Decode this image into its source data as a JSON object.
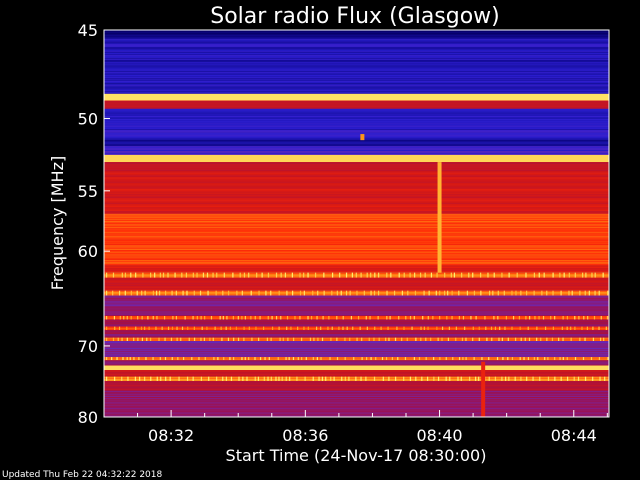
{
  "chart_data": {
    "type": "heatmap",
    "title": "Solar radio Flux (Glasgow)",
    "ylabel": "Frequency [MHz]",
    "xlabel": "Start Time (24-Nov-17 08:30:00)",
    "x_ticks": [
      "08:32",
      "08:36",
      "08:40",
      "08:44"
    ],
    "x_tick_minutes": [
      2,
      6,
      10,
      14
    ],
    "xlim_minutes": [
      0,
      15.05
    ],
    "y_ticks": [
      "45",
      "50",
      "55",
      "60",
      "70",
      "80"
    ],
    "y_tick_values": [
      45,
      50,
      55,
      60,
      70,
      80
    ],
    "ylim": [
      45,
      80
    ],
    "y_scale": "reciprocal",
    "footer": "Updated Thu Feb 22 04:32:22 2018",
    "colormap": [
      "#06006a",
      "#2a1ed0",
      "#6a2ab8",
      "#a0104a",
      "#d01818",
      "#ff2a08",
      "#ff9a18",
      "#ffee70"
    ],
    "bands": [
      {
        "from": 45.0,
        "to": 45.4,
        "level": 0.02
      },
      {
        "from": 45.4,
        "to": 48.5,
        "level": 0.12
      },
      {
        "from": 48.5,
        "to": 48.9,
        "level": 0.98
      },
      {
        "from": 48.9,
        "to": 49.4,
        "level": 0.55
      },
      {
        "from": 49.4,
        "to": 51.3,
        "level": 0.14
      },
      {
        "from": 51.3,
        "to": 51.8,
        "level": 0.06
      },
      {
        "from": 51.8,
        "to": 52.4,
        "level": 0.2
      },
      {
        "from": 52.4,
        "to": 52.9,
        "level": 0.96
      },
      {
        "from": 52.9,
        "to": 53.6,
        "level": 0.52
      },
      {
        "from": 53.6,
        "to": 56.8,
        "level": 0.58
      },
      {
        "from": 56.8,
        "to": 61.3,
        "level": 0.74
      },
      {
        "from": 61.3,
        "to": 62.0,
        "level": 0.6
      },
      {
        "from": 62.0,
        "to": 62.5,
        "level": 0.82
      },
      {
        "from": 62.5,
        "to": 63.8,
        "level": 0.55
      },
      {
        "from": 63.8,
        "to": 64.3,
        "level": 0.8
      },
      {
        "from": 64.3,
        "to": 66.5,
        "level": 0.36
      },
      {
        "from": 66.5,
        "to": 66.9,
        "level": 0.78
      },
      {
        "from": 66.9,
        "to": 67.7,
        "level": 0.42
      },
      {
        "from": 67.7,
        "to": 68.1,
        "level": 0.74
      },
      {
        "from": 68.1,
        "to": 69.0,
        "level": 0.4
      },
      {
        "from": 69.0,
        "to": 69.4,
        "level": 0.8
      },
      {
        "from": 69.4,
        "to": 71.4,
        "level": 0.34
      },
      {
        "from": 71.4,
        "to": 71.8,
        "level": 0.82
      },
      {
        "from": 71.8,
        "to": 72.5,
        "level": 0.4
      },
      {
        "from": 72.5,
        "to": 73.1,
        "level": 0.97
      },
      {
        "from": 73.1,
        "to": 74.0,
        "level": 0.55
      },
      {
        "from": 74.0,
        "to": 74.6,
        "level": 0.85
      },
      {
        "from": 74.6,
        "to": 76.0,
        "level": 0.5
      },
      {
        "from": 76.0,
        "to": 80.0,
        "level": 0.38
      }
    ],
    "events": [
      {
        "t_minutes": 10.0,
        "f_from": 52.9,
        "f_to": 62.0,
        "level": 0.9
      },
      {
        "t_minutes": 11.3,
        "f_from": 72.0,
        "f_to": 80.0,
        "level": 0.65
      },
      {
        "t_minutes": 7.7,
        "f_from": 51.0,
        "f_to": 51.4,
        "level": 0.85
      }
    ]
  }
}
